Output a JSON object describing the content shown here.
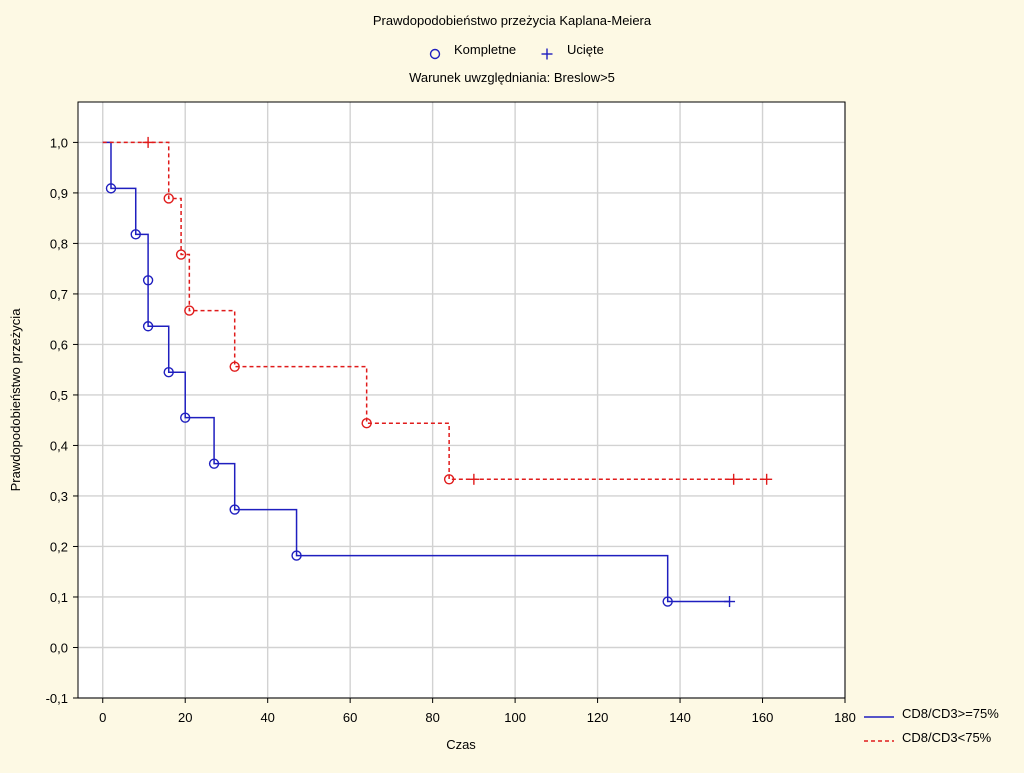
{
  "chart_data": {
    "type": "line",
    "title": "Prawdopodobieństwo przeżycia Kaplana-Meiera",
    "subtitle": "Warunek uwzględniania: Breslow>5",
    "xlabel": "Czas",
    "ylabel": "Prawdopodobieństwo przeżycia",
    "xlim": [
      -6,
      180
    ],
    "ylim": [
      -0.1,
      1.08
    ],
    "x_ticks": [
      "0",
      "20",
      "40",
      "60",
      "80",
      "100",
      "120",
      "140",
      "160",
      "180"
    ],
    "x_tick_values": [
      0,
      20,
      40,
      60,
      80,
      100,
      120,
      140,
      160,
      180
    ],
    "y_ticks": [
      "-0,1",
      "0,0",
      "0,1",
      "0,2",
      "0,3",
      "0,4",
      "0,5",
      "0,6",
      "0,7",
      "0,8",
      "0,9",
      "1,0"
    ],
    "y_tick_values": [
      -0.1,
      0.0,
      0.1,
      0.2,
      0.3,
      0.4,
      0.5,
      0.6,
      0.7,
      0.8,
      0.9,
      1.0
    ],
    "grid": true,
    "marker_legend": [
      {
        "label": "Kompletne",
        "marker": "circle"
      },
      {
        "label": "Ucięte",
        "marker": "plus"
      }
    ],
    "series_legend_position": "bottom-right",
    "series": [
      {
        "name": "CD8/CD3>=75%",
        "color": "#1f1fbf",
        "style": "solid",
        "steps": [
          [
            0,
            1.0
          ],
          [
            2,
            0.909
          ],
          [
            8,
            0.818
          ],
          [
            11,
            0.727
          ],
          [
            11,
            0.636
          ],
          [
            16,
            0.545
          ],
          [
            20,
            0.455
          ],
          [
            27,
            0.364
          ],
          [
            32,
            0.273
          ],
          [
            47,
            0.182
          ],
          [
            137,
            0.091
          ]
        ],
        "end_x": 152,
        "complete": [
          [
            2,
            0.909
          ],
          [
            8,
            0.818
          ],
          [
            11,
            0.727
          ],
          [
            11,
            0.636
          ],
          [
            16,
            0.545
          ],
          [
            20,
            0.455
          ],
          [
            27,
            0.364
          ],
          [
            32,
            0.273
          ],
          [
            47,
            0.182
          ],
          [
            137,
            0.091
          ]
        ],
        "censored": [
          [
            152,
            0.091
          ]
        ]
      },
      {
        "name": "CD8/CD3<75%",
        "color": "#e01b1b",
        "style": "dashed",
        "steps": [
          [
            0,
            1.0
          ],
          [
            16,
            0.889
          ],
          [
            19,
            0.778
          ],
          [
            21,
            0.667
          ],
          [
            32,
            0.556
          ],
          [
            64,
            0.444
          ],
          [
            84,
            0.333
          ]
        ],
        "end_x": 161,
        "complete": [
          [
            16,
            0.889
          ],
          [
            19,
            0.778
          ],
          [
            21,
            0.667
          ],
          [
            32,
            0.556
          ],
          [
            64,
            0.444
          ],
          [
            84,
            0.333
          ]
        ],
        "censored": [
          [
            11,
            1.0
          ],
          [
            90,
            0.333
          ],
          [
            153,
            0.333
          ],
          [
            161,
            0.333
          ]
        ]
      }
    ]
  }
}
